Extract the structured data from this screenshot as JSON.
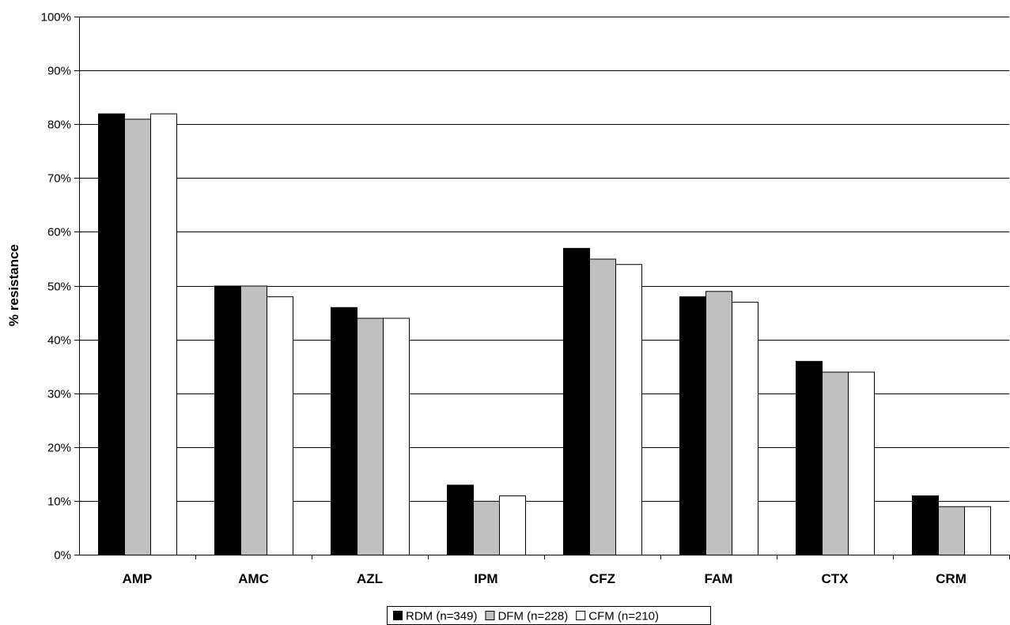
{
  "chart_data": {
    "type": "bar",
    "title": "",
    "xlabel": "",
    "ylabel": "% resistance",
    "ylim": [
      0,
      100
    ],
    "y_tick_step": 10,
    "y_tick_format": "percent",
    "grid": "horizontal",
    "legend_position": "bottom",
    "categories": [
      "AMP",
      "AMC",
      "AZL",
      "IPM",
      "CFZ",
      "FAM",
      "CTX",
      "CRM"
    ],
    "series": [
      {
        "name": "RDM (n=349)",
        "color": "#000000",
        "values": [
          82,
          50,
          46,
          13,
          57,
          48,
          36,
          11
        ]
      },
      {
        "name": "DFM (n=228)",
        "color": "#c0c0c0",
        "values": [
          81,
          50,
          44,
          10,
          55,
          49,
          34,
          9
        ]
      },
      {
        "name": "CFM (n=210)",
        "color": "#ffffff",
        "values": [
          82,
          48,
          44,
          11,
          54,
          47,
          34,
          9
        ]
      }
    ]
  }
}
